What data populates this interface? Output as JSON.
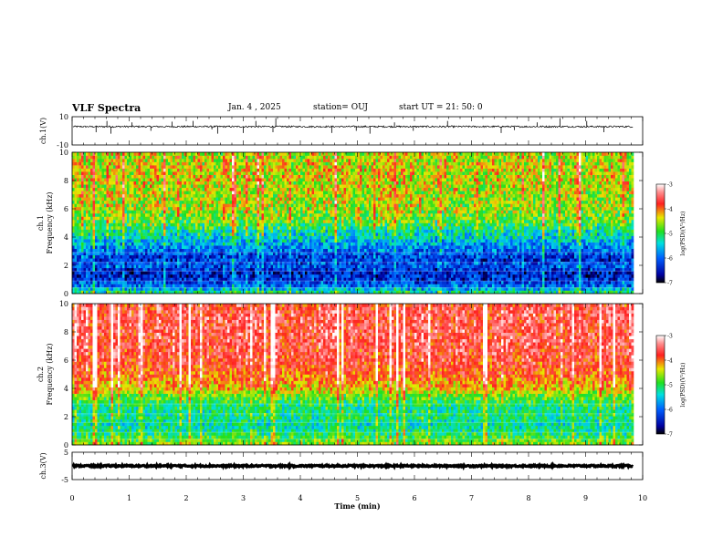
{
  "header": {
    "title": "VLF Spectra",
    "date": "Jan. 4 , 2025",
    "station": "station= OUJ",
    "start": "start UT =  21: 50: 0"
  },
  "chart_data": [
    {
      "type": "line",
      "name": "ch1-waveform",
      "ylabel": "ch.1(V)",
      "ylim": [
        -10,
        10
      ],
      "y_ticks": [
        "10",
        "-10"
      ],
      "xlim": [
        0,
        10
      ],
      "baseline": 3.0,
      "noise": 0.6,
      "spikes": [
        {
          "x": 0.42,
          "y": -1.0
        },
        {
          "x": 0.61,
          "y": 7.0
        },
        {
          "x": 0.68,
          "y": -2.0
        },
        {
          "x": 1.05,
          "y": 6.0
        },
        {
          "x": 1.38,
          "y": 0.0
        },
        {
          "x": 1.75,
          "y": 6.5
        },
        {
          "x": 2.12,
          "y": 7.0
        },
        {
          "x": 2.45,
          "y": 1.0
        },
        {
          "x": 2.55,
          "y": -2.0
        },
        {
          "x": 3.0,
          "y": -1.5
        },
        {
          "x": 3.22,
          "y": 7.0
        },
        {
          "x": 3.52,
          "y": -1.0
        },
        {
          "x": 3.57,
          "y": 9.0
        },
        {
          "x": 4.55,
          "y": -1.5
        },
        {
          "x": 4.98,
          "y": 0.0
        },
        {
          "x": 5.22,
          "y": -2.0
        },
        {
          "x": 5.65,
          "y": 6.0
        },
        {
          "x": 5.98,
          "y": 0.0
        },
        {
          "x": 6.58,
          "y": 7.0
        },
        {
          "x": 7.52,
          "y": -1.5
        },
        {
          "x": 7.75,
          "y": 0.5
        },
        {
          "x": 8.15,
          "y": 6.0
        },
        {
          "x": 8.55,
          "y": 9.0
        },
        {
          "x": 9.02,
          "y": 7.0
        },
        {
          "x": 9.32,
          "y": -1.0
        }
      ]
    },
    {
      "type": "heatmap",
      "name": "ch1-spectrogram",
      "ylabel": "ch.1\nFrequency (kHz)",
      "ylim": [
        0,
        10
      ],
      "xlim": [
        0,
        10
      ],
      "y_ticks": [
        "0",
        "2",
        "4",
        "6",
        "8",
        "10"
      ],
      "colorbar": {
        "label": "log(PSD)(V²/Hz)",
        "range": [
          -7,
          -3
        ],
        "ticks": [
          "-3",
          "-4",
          "-5",
          "-6",
          "-7"
        ]
      },
      "profile_freq_khz": [
        0,
        0.5,
        1,
        1.5,
        2,
        2.5,
        3,
        3.5,
        4,
        4.5,
        5,
        6,
        7,
        8,
        9,
        10
      ],
      "profile_logpsd": [
        -5.0,
        -5.9,
        -6.3,
        -6.4,
        -6.1,
        -6.3,
        -6.0,
        -5.7,
        -5.4,
        -5.2,
        -4.8,
        -4.6,
        -4.5,
        -4.4,
        -4.4,
        -4.5
      ],
      "variability": 0.55
    },
    {
      "type": "heatmap",
      "name": "ch2-spectrogram",
      "ylabel": "ch.2\nFrequency (kHz)",
      "ylim": [
        0,
        10
      ],
      "xlim": [
        0,
        10
      ],
      "y_ticks": [
        "0",
        "2",
        "4",
        "6",
        "8",
        "10"
      ],
      "colorbar": {
        "label": "log(PSD)(V²/Hz)",
        "range": [
          -7,
          -3
        ],
        "ticks": [
          "-3",
          "-4",
          "-5",
          "-6",
          "-7"
        ]
      },
      "profile_freq_khz": [
        0,
        0.5,
        1,
        1.5,
        2,
        2.5,
        3,
        3.5,
        4,
        5,
        6,
        7,
        8,
        9,
        10
      ],
      "profile_logpsd": [
        -4.6,
        -4.9,
        -5.2,
        -5.3,
        -5.1,
        -5.2,
        -5.0,
        -4.7,
        -4.3,
        -3.9,
        -3.7,
        -3.65,
        -3.6,
        -3.6,
        -3.7
      ],
      "variability": 0.45
    },
    {
      "type": "line",
      "name": "ch3-waveform",
      "ylabel": "ch.3(V)",
      "ylim": [
        -5,
        5
      ],
      "y_ticks": [
        "5",
        "-5"
      ],
      "xlim": [
        0,
        10
      ],
      "baseline": 0.0,
      "noise": 0.3
    }
  ],
  "x_axis": {
    "label": "Time (min)",
    "ticks": [
      "0",
      "1",
      "2",
      "3",
      "4",
      "5",
      "6",
      "7",
      "8",
      "9",
      "10"
    ],
    "data_end": 9.83
  }
}
